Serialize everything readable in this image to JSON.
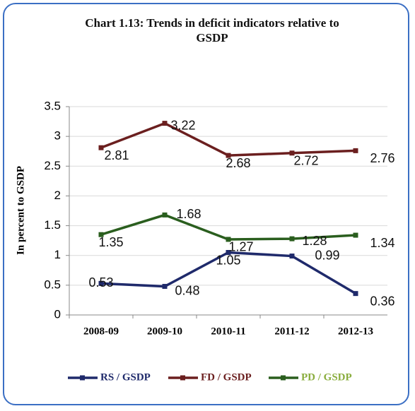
{
  "chart_data": {
    "type": "line",
    "title": "Chart 1.13: Trends in deficit indicators relative to GSDP",
    "y_label": "In percent to GSDP",
    "categories": [
      "2008-09",
      "2009-10",
      "2010-11",
      "2011-12",
      "2012-13"
    ],
    "series": [
      {
        "name": "RS / GSDP",
        "color": "#1f2a6b",
        "values": [
          0.53,
          0.48,
          1.05,
          0.99,
          0.36
        ]
      },
      {
        "name": "FD / GSDP",
        "color": "#6b1f1f",
        "values": [
          2.81,
          3.22,
          2.68,
          2.72,
          2.76
        ]
      },
      {
        "name": "PD / GSDP",
        "color": "#2a5e1e",
        "values": [
          1.35,
          1.68,
          1.27,
          1.28,
          1.34
        ]
      }
    ],
    "ylim": [
      0,
      3.5
    ],
    "yticks": [
      0,
      0.5,
      1,
      1.5,
      2,
      2.5,
      3,
      3.5
    ],
    "grid": true,
    "legend": "bottom"
  }
}
